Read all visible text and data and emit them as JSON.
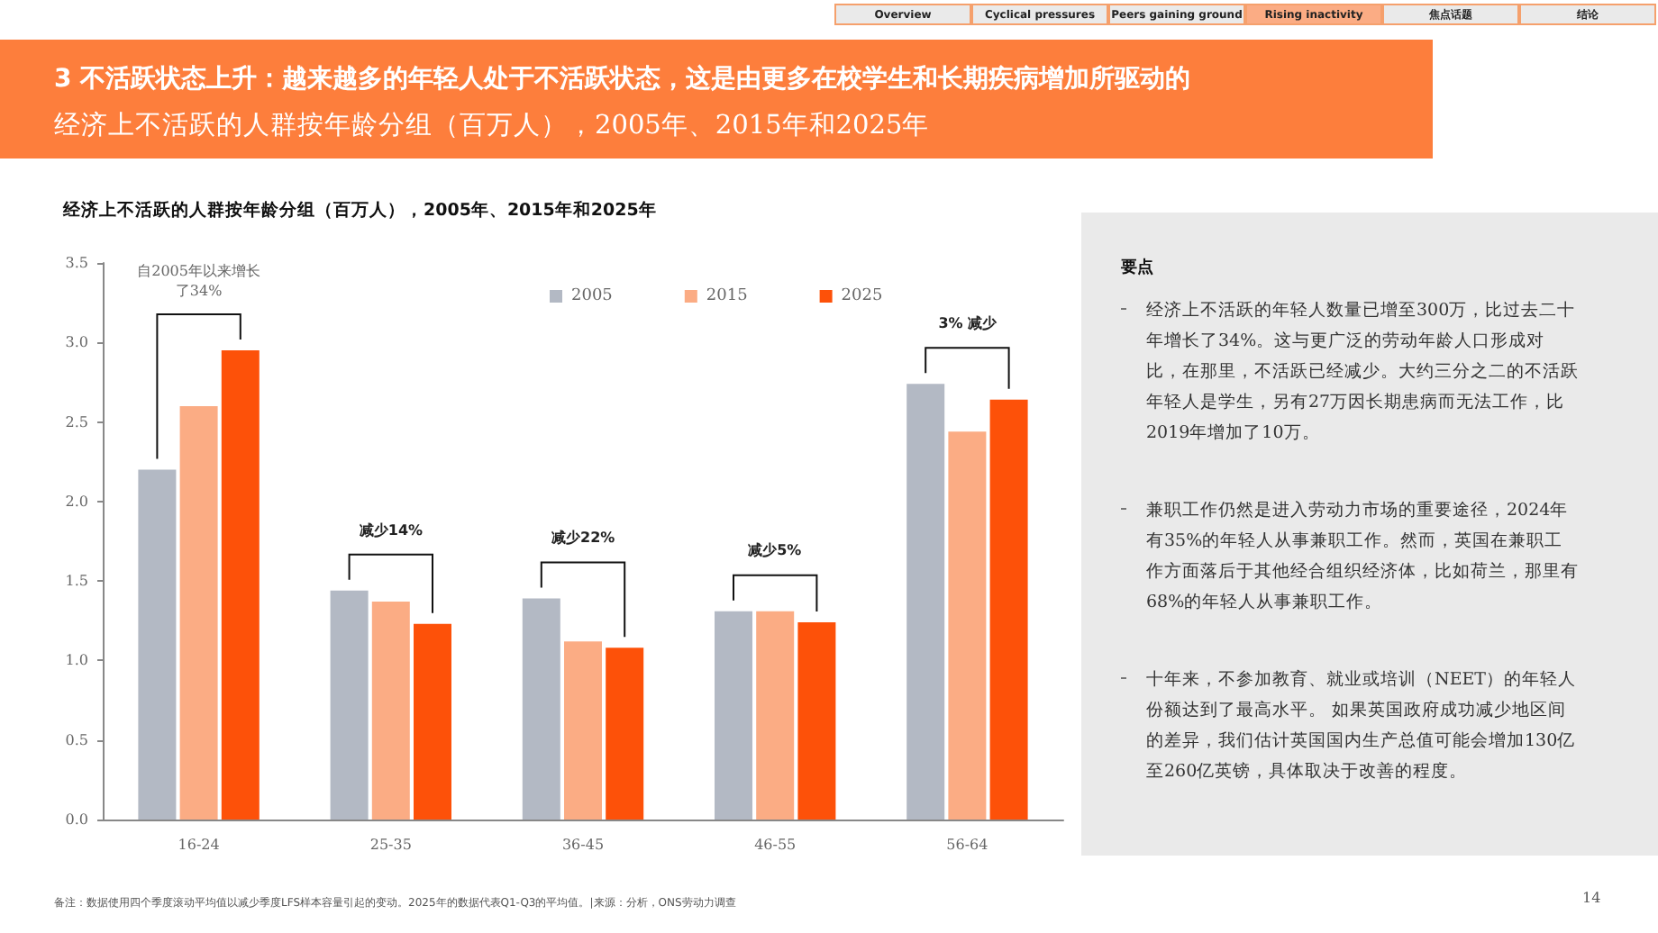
{
  "chart_data": [
    {
      "type": "bar",
      "title": "经济上不活跃的人群按年龄分组（百万人），2005年、2015年和2025年",
      "categories": [
        "16-24",
        "25-35",
        "36-45",
        "46-55",
        "56-64"
      ],
      "series": [
        {
          "name": "2005",
          "color": "#b3b9c4",
          "values": [
            2.2,
            1.44,
            1.39,
            1.31,
            2.74
          ]
        },
        {
          "name": "2015",
          "color": "#fbac84",
          "values": [
            2.6,
            1.37,
            1.12,
            1.31,
            2.44
          ]
        },
        {
          "name": "2025",
          "color": "#fd5109",
          "values": [
            2.95,
            1.23,
            1.08,
            1.24,
            2.64
          ]
        }
      ],
      "ylim": [
        0,
        3.5
      ],
      "yticks": [
        {
          "value": 0,
          "label": "0.0"
        },
        0.5,
        {
          "value": 1,
          "label": "1.0"
        },
        1.5,
        {
          "value": 2,
          "label": "2.0"
        },
        2.5,
        {
          "value": 3,
          "label": "3.0"
        },
        3.5
      ],
      "grid": false,
      "legend": "top",
      "annotations": [
        "Overview",
        "Cyclical pressures",
        "Peers gaining ground",
        "Rising inactivity",
        "焦点话题",
        "结论",
        "3 不活跃状态上升：越来越多的年轻人处于不活跃状态，这是由更多在校学生和长期疾病增加所驱动的",
        "经济上不活跃的人群按年龄分组（百万人），2005年、2015年和2025年",
        "自2005年以来增长了34%",
        "减少14%",
        "减少22%",
        "减少5%",
        "3% 减少",
        "备注：数据使用四个季度滚动平均值以减少季度LFS样本容量引起的变动。2025年的数据代表Q1-Q3的平均值。|来源：分析，ONS劳动力调查",
        "14"
      ]
    },
    {
      "type": "other",
      "title": "要点",
      "annotations": [
        "经济上不活跃的年轻人数量已增至300万，比过去二十年增长了34%。这与更广泛的劳动年龄人口形成对比，在那里，不活跃已经减少。大约三分之二的不活跃年轻人是学生，另有27万因长期患病而无法工作，比2019年增加了10万。",
        "兼职工作仍然是进入劳动力市场的重要途径，2024年有35%的年轻人从事兼职工作。然而，英国在兼职工作方面落后于其他经合组织经济体，比如荷兰，那里有68%的年轻人从事兼职工作。",
        "十年来，不参加教育、就业或培训（NEET）的年轻人份额达到了最高水平。 如果英国政府成功减少地区间的差异，我们估计英国国内生产总值可能会增加130亿至260亿英镑，具体取决于改善的程度。"
      ]
    }
  ]
}
